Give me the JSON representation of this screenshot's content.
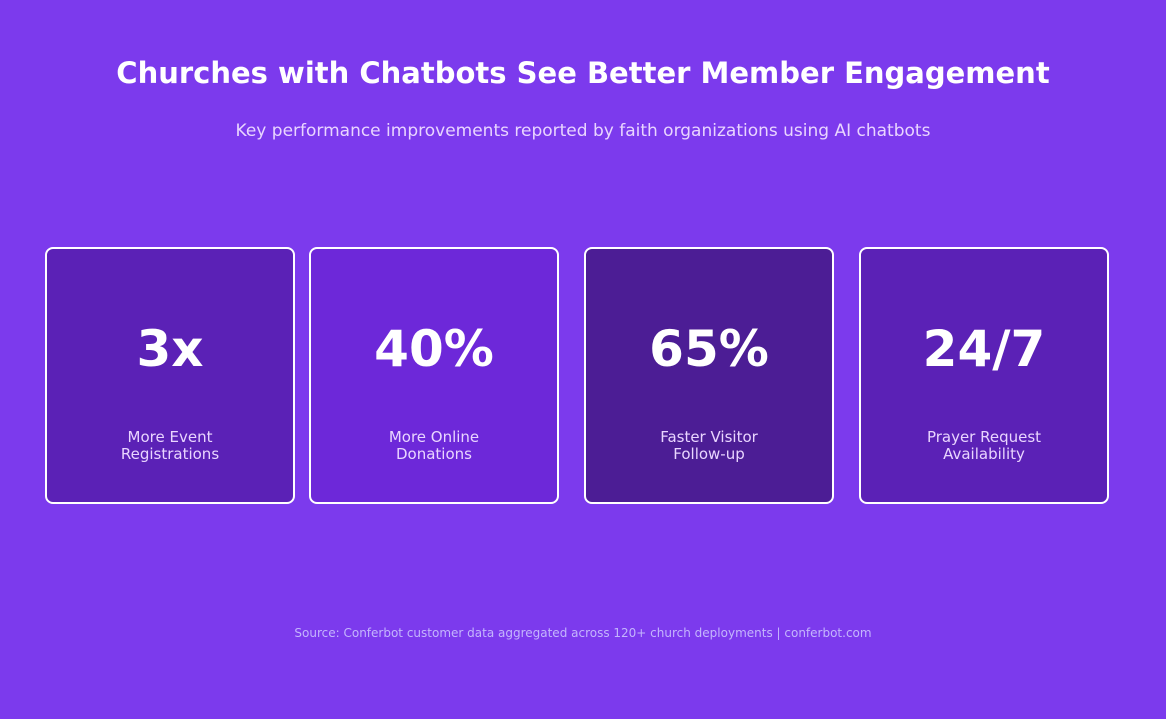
{
  "header": {
    "title": "Churches with Chatbots See Better Member Engagement",
    "subtitle": "Key performance improvements reported by faith organizations using AI chatbots"
  },
  "stats": [
    {
      "value": "3x",
      "label": "More Event\nRegistrations",
      "color": "#5b21b6"
    },
    {
      "value": "40%",
      "label": "More Online\nDonations",
      "color": "#6d28d9"
    },
    {
      "value": "65%",
      "label": "Faster Visitor\nFollow-up",
      "color": "#4c1d95"
    },
    {
      "value": "24/7",
      "label": "Prayer Request\nAvailability",
      "color": "#5b21b6"
    }
  ],
  "footer": {
    "source": "Source: Conferbot customer data aggregated across 120+ church deployments | conferbot.com"
  },
  "colors": {
    "background": "#7c3aed",
    "card_border": "#ffffff",
    "text_primary": "#ffffff",
    "text_secondary": "#e9d5ff"
  }
}
